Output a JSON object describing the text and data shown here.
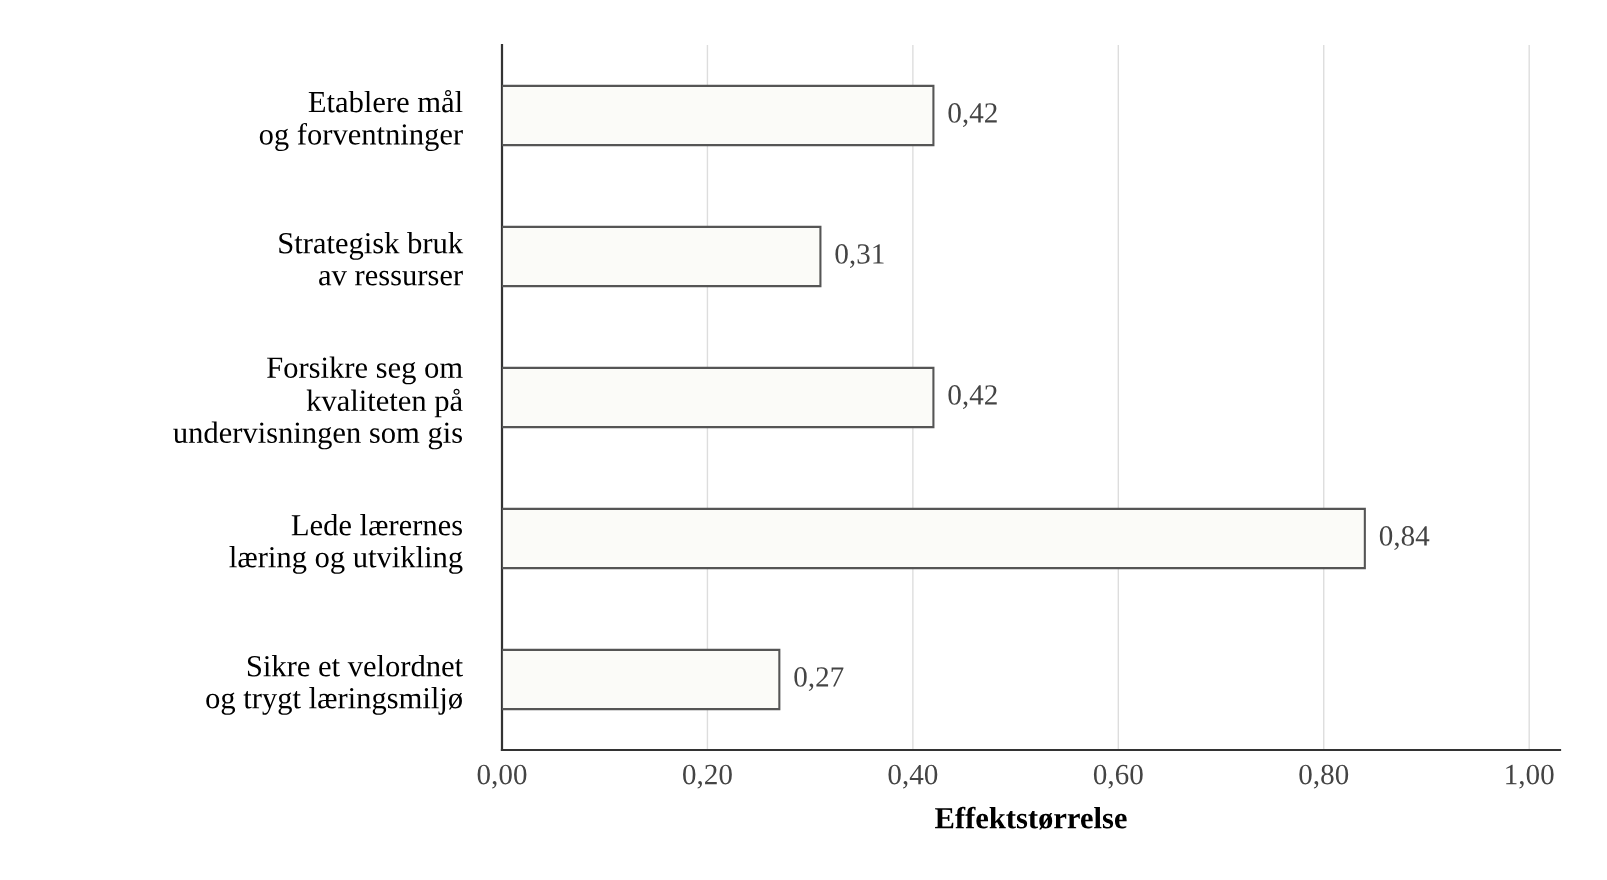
{
  "chart_data": {
    "type": "bar",
    "orientation": "horizontal",
    "categories": [
      "Etablere mål\nog forventninger",
      "Strategisk bruk\nav ressurser",
      "Forsikre seg om\nkvaliteten på\nundervisningen som gis",
      "Lede lærernes\nlæring og utvikling",
      "Sikre et velordnet\nog trygt læringsmiljø"
    ],
    "values": [
      0.42,
      0.31,
      0.42,
      0.84,
      0.27
    ],
    "value_labels": [
      "0,42",
      "0,31",
      "0,42",
      "0,84",
      "0,27"
    ],
    "color": "#fbfbf8",
    "xlabel": "Effektstørrelse",
    "xlim": [
      0,
      1.03
    ],
    "xticks": [
      {
        "value": 0,
        "label": "0,00"
      },
      {
        "value": 0.2,
        "label": "0,20"
      },
      {
        "value": 0.4,
        "label": "0,40"
      },
      {
        "value": 0.6,
        "label": "0,60"
      },
      {
        "value": 0.8,
        "label": "0,80"
      },
      {
        "value": 1.0,
        "label": "1,00"
      }
    ],
    "grid": "x",
    "legend": false
  }
}
